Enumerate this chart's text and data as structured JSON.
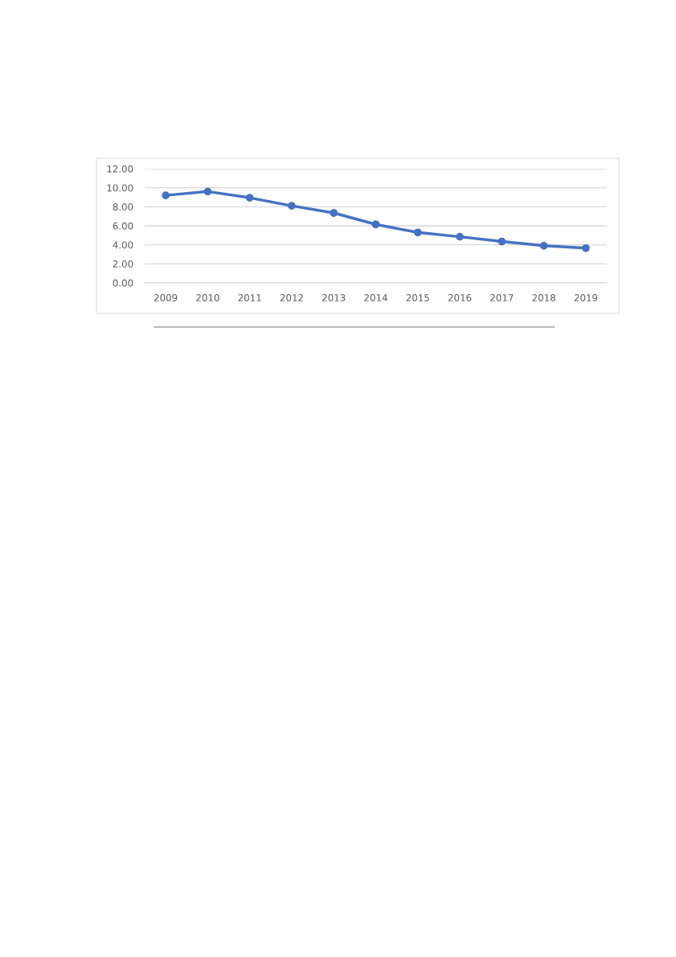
{
  "chart_data": {
    "type": "line",
    "categories": [
      "2009",
      "2010",
      "2011",
      "2012",
      "2013",
      "2014",
      "2015",
      "2016",
      "2017",
      "2018",
      "2019"
    ],
    "series": [
      {
        "color": "#4472c4",
        "values": [
          9.2,
          9.6,
          8.95,
          8.1,
          7.35,
          6.15,
          5.3,
          4.85,
          4.35,
          3.9,
          3.65
        ]
      }
    ],
    "ylim": [
      0,
      12
    ],
    "yticks": [
      {
        "value": 0,
        "label": "0.00"
      },
      {
        "value": 2,
        "label": "2.00"
      },
      {
        "value": 4,
        "label": "4.00"
      },
      {
        "value": 6,
        "label": "6.00"
      },
      {
        "value": 8,
        "label": "8.00"
      },
      {
        "value": 10,
        "label": "10.00"
      },
      {
        "value": 12,
        "label": "12.00"
      }
    ],
    "grid": "y",
    "marker": "circle",
    "line_style": "solid",
    "legend": false
  }
}
